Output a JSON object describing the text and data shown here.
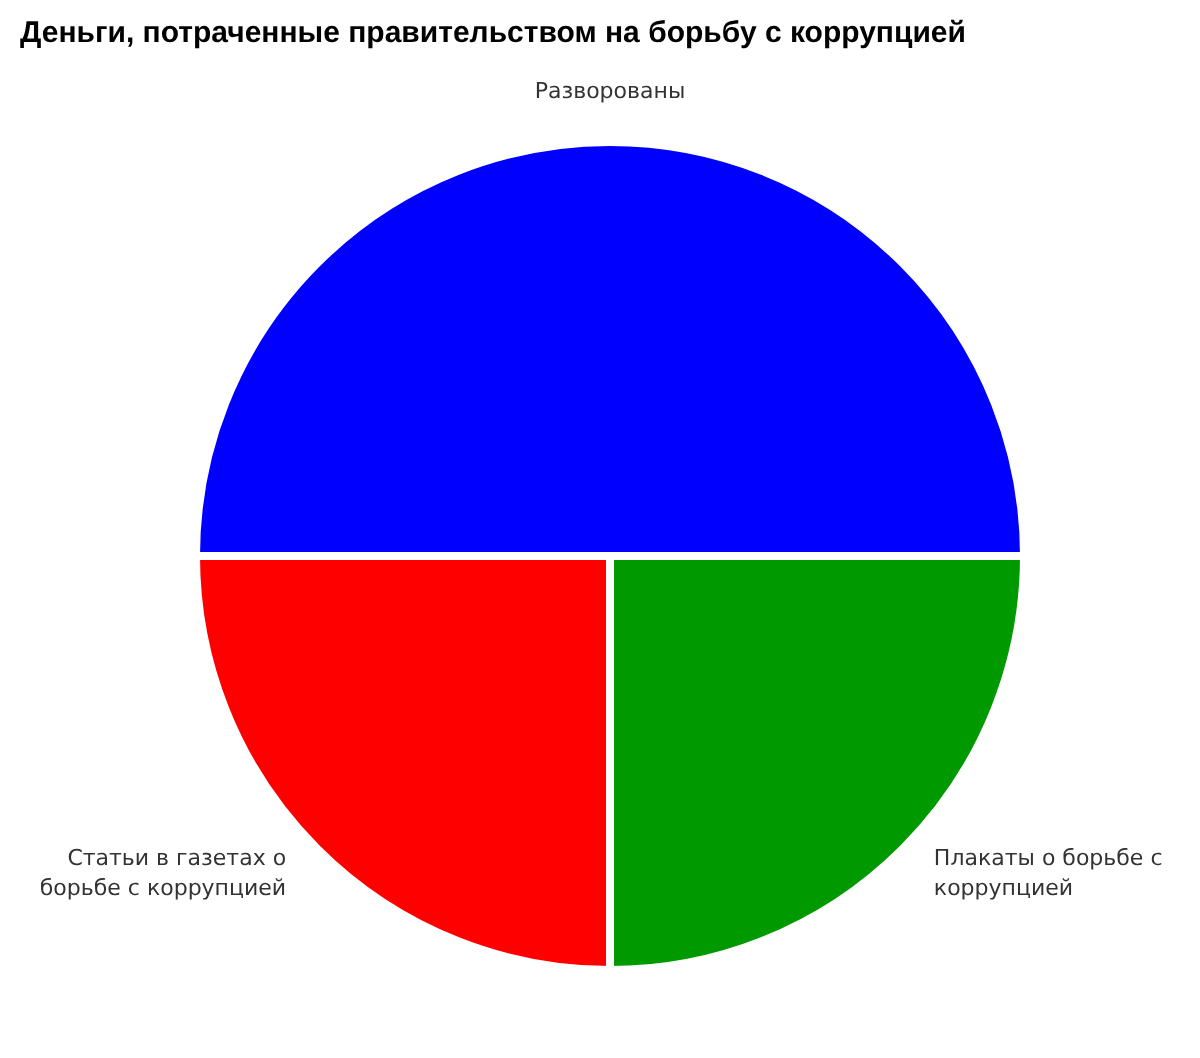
{
  "chart_data": {
    "type": "pie",
    "title": "Деньги, потраченные правительством на борьбу с коррупцией",
    "categories": [
      "Разворованы",
      "Плакаты о борьбе с коррупцией",
      "Статьи в газетах о борьбе с коррупцией"
    ],
    "values": [
      50,
      25,
      25
    ],
    "colors": [
      "#0000ff",
      "#009900",
      "#ff0000"
    ],
    "legend": false
  }
}
